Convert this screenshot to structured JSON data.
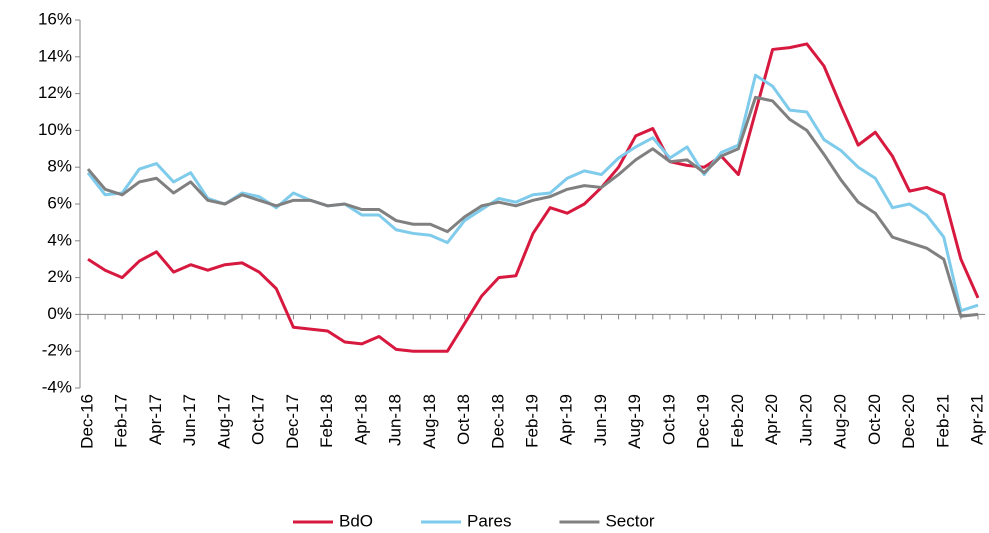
{
  "chart_data": {
    "type": "line",
    "categories": [
      "Dec-16",
      null,
      "Feb-17",
      null,
      "Apr-17",
      null,
      "Jun-17",
      null,
      "Aug-17",
      null,
      "Oct-17",
      null,
      "Dec-17",
      null,
      "Feb-18",
      null,
      "Apr-18",
      null,
      "Jun-18",
      null,
      "Aug-18",
      null,
      "Oct-18",
      null,
      "Dec-18",
      null,
      "Feb-19",
      null,
      "Apr-19",
      null,
      "Jun-19",
      null,
      "Aug-19",
      null,
      "Oct-19",
      null,
      "Dec-19",
      null,
      "Feb-20",
      null,
      "Apr-20",
      null,
      "Jun-20",
      null,
      "Aug-20",
      null,
      "Oct-20",
      null,
      "Dec-20",
      null,
      "Feb-21",
      null,
      "Apr-21"
    ],
    "series": [
      {
        "name": "BdO",
        "color": "#d7193f",
        "values": [
          3.0,
          2.4,
          2.0,
          2.9,
          3.4,
          2.3,
          2.7,
          2.4,
          2.7,
          2.8,
          2.3,
          1.4,
          -0.7,
          -0.8,
          -0.9,
          -1.5,
          -1.6,
          -1.2,
          -1.9,
          -2.0,
          -2.0,
          -2.0,
          -0.5,
          1.0,
          2.0,
          2.1,
          4.4,
          5.8,
          5.5,
          6.0,
          6.9,
          8.0,
          9.7,
          10.1,
          8.3,
          8.1,
          8.0,
          8.6,
          7.6,
          11.0,
          14.4,
          14.5,
          14.7,
          13.5,
          11.3,
          9.2,
          9.9,
          8.6,
          6.7,
          6.9,
          6.5,
          3.0,
          0.9
        ]
      },
      {
        "name": "Pares",
        "color": "#7ecbeb",
        "values": [
          7.7,
          6.5,
          6.6,
          7.9,
          8.2,
          7.2,
          7.7,
          6.3,
          6.0,
          6.6,
          6.4,
          5.8,
          6.6,
          6.2,
          5.9,
          6.0,
          5.4,
          5.4,
          4.6,
          4.4,
          4.3,
          3.9,
          5.1,
          5.7,
          6.3,
          6.1,
          6.5,
          6.6,
          7.4,
          7.8,
          7.6,
          8.5,
          9.1,
          9.6,
          8.5,
          9.1,
          7.6,
          8.8,
          9.2,
          13.0,
          12.4,
          11.1,
          11.0,
          9.5,
          8.9,
          8.0,
          7.4,
          5.8,
          6.0,
          5.4,
          4.2,
          0.2,
          0.5
        ]
      },
      {
        "name": "Sector",
        "color": "#808080",
        "values": [
          7.9,
          6.8,
          6.5,
          7.2,
          7.4,
          6.6,
          7.2,
          6.2,
          6.0,
          6.5,
          6.2,
          5.9,
          6.2,
          6.2,
          5.9,
          6.0,
          5.7,
          5.7,
          5.1,
          4.9,
          4.9,
          4.5,
          5.3,
          5.9,
          6.1,
          5.9,
          6.2,
          6.4,
          6.8,
          7.0,
          6.9,
          7.6,
          8.4,
          9.0,
          8.3,
          8.4,
          7.7,
          8.6,
          9.0,
          11.8,
          11.6,
          10.6,
          10.0,
          8.7,
          7.3,
          6.1,
          5.5,
          4.2,
          3.9,
          3.6,
          3.0,
          -0.1,
          0.0
        ]
      }
    ],
    "ylim": [
      -4,
      16
    ],
    "yticks": [
      {
        "value": -4,
        "label": "-4%"
      },
      {
        "value": -2,
        "label": "-2%"
      },
      {
        "value": 0,
        "label": "0%"
      },
      {
        "value": 2,
        "label": "2%"
      },
      {
        "value": 4,
        "label": "4%"
      },
      {
        "value": 6,
        "label": "6%"
      },
      {
        "value": 8,
        "label": "8%"
      },
      {
        "value": 10,
        "label": "10%"
      },
      {
        "value": 12,
        "label": "12%"
      },
      {
        "value": 14,
        "label": "14%"
      },
      {
        "value": 16,
        "label": "16%"
      }
    ],
    "legend": "bottom"
  }
}
